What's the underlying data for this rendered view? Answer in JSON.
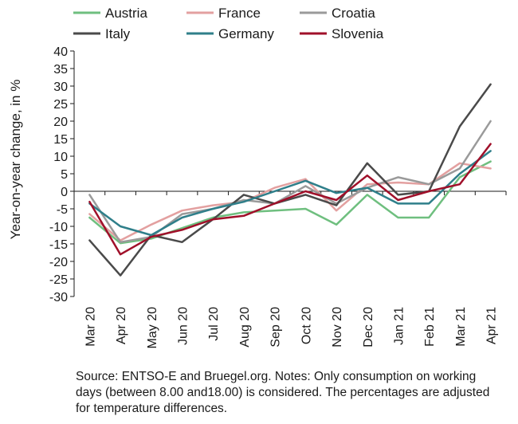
{
  "chart_data": {
    "type": "line",
    "title": "",
    "xlabel": "",
    "ylabel": "Year-on-year change, in %",
    "ylim": [
      -30,
      40
    ],
    "yticks": [
      40,
      35,
      30,
      25,
      20,
      15,
      10,
      5,
      0,
      -5,
      -10,
      -15,
      -20,
      -25,
      -30
    ],
    "categories": [
      "Mar 20",
      "Apr 20",
      "May 20",
      "Jun 20",
      "Jul 20",
      "Aug 20",
      "Sep 20",
      "Oct 20",
      "Nov 20",
      "Dec 20",
      "Jan 21",
      "Feb 21",
      "Mar 21",
      "Apr 21"
    ],
    "grid": false,
    "legend": "top",
    "series": [
      {
        "name": "Austria",
        "color": "#6fbf7f",
        "values": [
          -7.5,
          -14.8,
          -13.5,
          -10.5,
          -7.5,
          -6,
          -5.5,
          -5,
          -9.5,
          -1,
          -7.5,
          -7.5,
          4,
          8.5
        ]
      },
      {
        "name": "France",
        "color": "#e3a0a0",
        "values": [
          -6.5,
          -14,
          -9.5,
          -5.5,
          -4,
          -3,
          1,
          3.5,
          -5.5,
          2,
          2.5,
          2,
          8,
          6.5
        ]
      },
      {
        "name": "Croatia",
        "color": "#9a9a9a",
        "values": [
          -1,
          -14.5,
          -13,
          -6.5,
          -5,
          -2.5,
          -3.5,
          1.5,
          -3.5,
          1,
          4,
          2,
          6.5,
          20
        ]
      },
      {
        "name": "Italy",
        "color": "#4a4a4a",
        "values": [
          -14,
          -24,
          -12.5,
          -14.5,
          -8,
          -1,
          -3.5,
          -1,
          -4,
          8,
          -1,
          0,
          18.5,
          30.5
        ]
      },
      {
        "name": "Germany",
        "color": "#2f7f8a",
        "values": [
          -3.5,
          -10,
          -12.5,
          -7.5,
          -5,
          -3,
          0,
          3,
          -0.5,
          1,
          -3.5,
          -3.5,
          5,
          11.5
        ]
      },
      {
        "name": "Slovenia",
        "color": "#a0102a",
        "values": [
          -3,
          -18,
          -13,
          -11,
          -8,
          -7,
          -3.5,
          0,
          -2.5,
          4.5,
          -2.5,
          0,
          2,
          13.5
        ]
      }
    ]
  },
  "source_note": "Source: ENTSO-E and Bruegel.org. Notes: Only consumption on working days (between 8.00 and18.00) is considered. The percentages are adjusted for temperature differences."
}
